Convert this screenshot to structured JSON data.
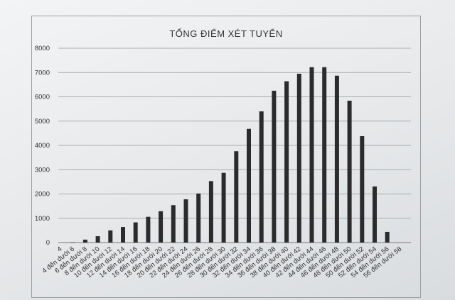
{
  "chart_data": {
    "type": "bar",
    "title": "TỔNG ĐIỂM XÉT TUYỂN",
    "xlabel": "",
    "ylabel": "",
    "ylim": [
      0,
      8000
    ],
    "yticks": [
      0,
      1000,
      2000,
      3000,
      4000,
      5000,
      6000,
      7000,
      8000
    ],
    "grid": true,
    "legend": "none",
    "bar_color": "#2b2b2b",
    "categories": [
      "4",
      "4 đến dưới 6",
      "6 đến dưới 8",
      "8 đến dưới 10",
      "10 đến dưới 12",
      "12 đến dưới 14",
      "14 đến dưới 16",
      "16 đến dưới 18",
      "18 đến dưới 20",
      "20 đến dưới 22",
      "22 đến dưới 24",
      "24 đến dưới 26",
      "26 đến dưới 28",
      "28 đến dưới 30",
      "30 đến dưới 32",
      "32 đến dưới 34",
      "34 đến dưới 36",
      "36 đến dưới 38",
      "38 đến dưới 40",
      "40 đến dưới 42",
      "42 đến dưới 44",
      "44 đến dưới 46",
      "46 đến dưới 48",
      "48 đến dưới 50",
      "50 đến dưới 52",
      "52 đến dưới 54",
      "54 đến dưới 56",
      "56 đến dưới 58"
    ],
    "values": [
      0,
      10,
      120,
      260,
      500,
      640,
      830,
      1060,
      1290,
      1540,
      1780,
      2020,
      2530,
      2870,
      3760,
      4680,
      5400,
      6250,
      6640,
      6950,
      7220,
      7220,
      6870,
      5840,
      4380,
      2310,
      440,
      0
    ]
  }
}
